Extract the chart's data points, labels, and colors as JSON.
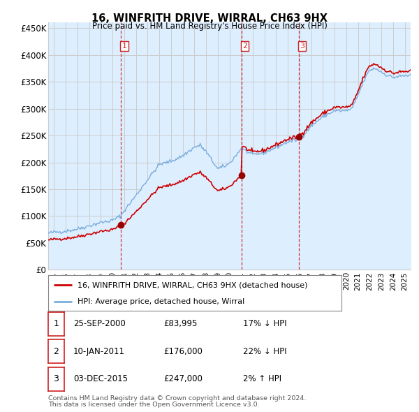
{
  "title": "16, WINFRITH DRIVE, WIRRAL, CH63 9HX",
  "subtitle": "Price paid vs. HM Land Registry's House Price Index (HPI)",
  "ylabel_ticks": [
    "£0",
    "£50K",
    "£100K",
    "£150K",
    "£200K",
    "£250K",
    "£300K",
    "£350K",
    "£400K",
    "£450K"
  ],
  "ytick_values": [
    0,
    50000,
    100000,
    150000,
    200000,
    250000,
    300000,
    350000,
    400000,
    450000
  ],
  "ylim": [
    0,
    460000
  ],
  "xlim_start": 1994.5,
  "xlim_end": 2025.5,
  "hpi_color": "#7aaddc",
  "hpi_fill_color": "#ddeeff",
  "price_color": "#cc0000",
  "sale_marker_color": "#990000",
  "vline_color": "#cc2222",
  "grid_color": "#cccccc",
  "bg_color": "#ffffff",
  "chart_bg_color": "#ddeeff",
  "sales": [
    {
      "label": "1",
      "date": 2000.73,
      "price": 83995,
      "note": "25-SEP-2000",
      "price_str": "£83,995",
      "hpi_note": "17% ↓ HPI"
    },
    {
      "label": "2",
      "date": 2011.03,
      "price": 176000,
      "note": "10-JAN-2011",
      "price_str": "£176,000",
      "hpi_note": "22% ↓ HPI"
    },
    {
      "label": "3",
      "date": 2015.92,
      "price": 247000,
      "note": "03-DEC-2015",
      "price_str": "£247,000",
      "hpi_note": "2% ↑ HPI"
    }
  ],
  "legend_line1": "16, WINFRITH DRIVE, WIRRAL, CH63 9HX (detached house)",
  "legend_line2": "HPI: Average price, detached house, Wirral",
  "footer1": "Contains HM Land Registry data © Crown copyright and database right 2024.",
  "footer2": "This data is licensed under the Open Government Licence v3.0."
}
